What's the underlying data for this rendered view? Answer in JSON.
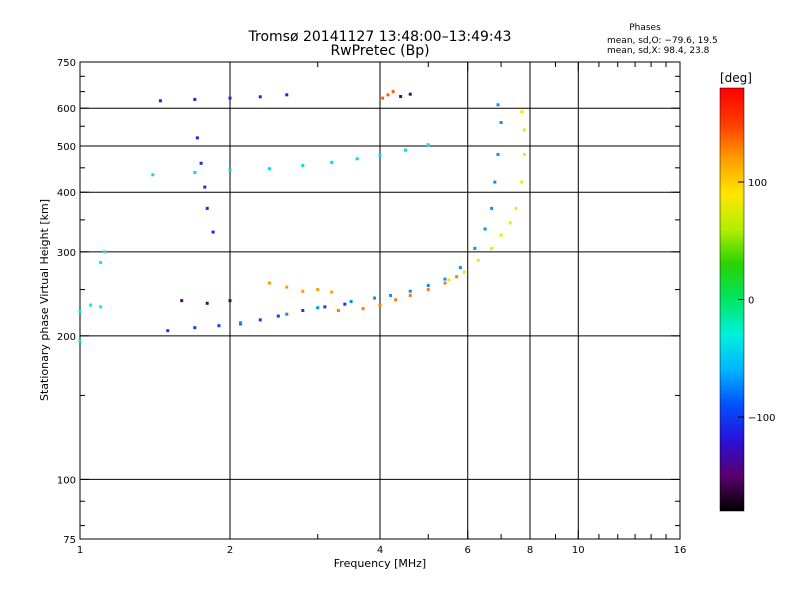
{
  "title": "Tromsø 20141127 13:48:00–13:49:43",
  "subtitle": "RwPretec (Bp)",
  "stats": {
    "heading": "Phases",
    "line_o": "mean, sd,O: −79.6, 19.5",
    "line_x": "mean, sd,X:  98.4, 23.8"
  },
  "chart_data": {
    "type": "scatter",
    "title": "Tromsø 20141127 13:48:00–13:49:43",
    "subtitle": "RwPretec (Bp)",
    "xlabel": "Frequency [MHz]",
    "ylabel": "Stationary phase Virtual Height [km]",
    "x_scale": "log",
    "y_scale": "log",
    "xlim": [
      1,
      16
    ],
    "ylim": [
      75,
      750
    ],
    "x_ticks": [
      1,
      2,
      4,
      6,
      8,
      10,
      16
    ],
    "x_tick_labels": [
      "1",
      "2",
      "4",
      "6",
      "8",
      "10",
      "16"
    ],
    "y_ticks": [
      75,
      100,
      200,
      300,
      400,
      500,
      600,
      750
    ],
    "y_tick_labels": [
      "75",
      "100",
      "200",
      "300",
      "400",
      "500",
      "600",
      "750"
    ],
    "x_gridlines": [
      2,
      4,
      6,
      8,
      10
    ],
    "y_gridlines": [
      100,
      200,
      300,
      400,
      500,
      600
    ],
    "grid": true,
    "colorbar": {
      "label": "[deg]",
      "range": [
        -180,
        180
      ],
      "ticks": [
        100,
        0,
        -100
      ],
      "tick_labels": [
        "100",
        "0",
        "−100"
      ],
      "colors": [
        "#000000",
        "#5a006e",
        "#2a10d8",
        "#0050ff",
        "#00b4ff",
        "#00f0dc",
        "#00e664",
        "#28d200",
        "#b4ee00",
        "#ffe600",
        "#ff9c00",
        "#ff3c00",
        "#ff0000"
      ]
    },
    "series": [
      {
        "phase_deg": -100,
        "points": [
          [
            1.5,
            205
          ],
          [
            1.7,
            208
          ],
          [
            1.9,
            210
          ],
          [
            2.1,
            212
          ],
          [
            2.3,
            216
          ],
          [
            2.5,
            220
          ],
          [
            2.8,
            226
          ],
          [
            3.1,
            230
          ],
          [
            3.4,
            233
          ]
        ]
      },
      {
        "phase_deg": -70,
        "points": [
          [
            2.1,
            213
          ],
          [
            2.6,
            222
          ],
          [
            3.0,
            229
          ],
          [
            3.5,
            236
          ],
          [
            3.9,
            240
          ],
          [
            4.2,
            243
          ],
          [
            4.6,
            248
          ],
          [
            5.0,
            255
          ],
          [
            5.4,
            263
          ],
          [
            5.8,
            278
          ],
          [
            6.2,
            305
          ],
          [
            6.5,
            335
          ],
          [
            6.7,
            370
          ],
          [
            6.8,
            420
          ],
          [
            6.9,
            480
          ],
          [
            7.0,
            560
          ],
          [
            6.9,
            610
          ]
        ]
      },
      {
        "phase_deg": 130,
        "points": [
          [
            3.3,
            226
          ],
          [
            3.7,
            228
          ],
          [
            4.0,
            232
          ],
          [
            4.3,
            238
          ],
          [
            4.6,
            243
          ],
          [
            5.0,
            250
          ],
          [
            5.4,
            258
          ],
          [
            5.7,
            266
          ]
        ]
      },
      {
        "phase_deg": 85,
        "points": [
          [
            5.5,
            262
          ],
          [
            5.9,
            272
          ],
          [
            6.3,
            288
          ],
          [
            6.7,
            305
          ],
          [
            7.0,
            325
          ],
          [
            7.3,
            345
          ],
          [
            7.5,
            370
          ],
          [
            7.7,
            420
          ],
          [
            7.8,
            480
          ],
          [
            7.8,
            540
          ],
          [
            7.7,
            590
          ]
        ]
      },
      {
        "phase_deg": -110,
        "points": [
          [
            1.45,
            622
          ],
          [
            1.7,
            626
          ],
          [
            2.0,
            630
          ],
          [
            2.3,
            634
          ],
          [
            2.6,
            640
          ],
          [
            1.72,
            520
          ],
          [
            1.75,
            460
          ],
          [
            1.78,
            410
          ],
          [
            1.8,
            370
          ],
          [
            1.85,
            330
          ]
        ]
      },
      {
        "phase_deg": -40,
        "points": [
          [
            1.4,
            435
          ],
          [
            1.7,
            440
          ],
          [
            2.0,
            445
          ],
          [
            2.4,
            448
          ],
          [
            2.8,
            455
          ],
          [
            3.2,
            462
          ],
          [
            3.6,
            470
          ],
          [
            4.0,
            478
          ],
          [
            4.5,
            490
          ],
          [
            5.0,
            503
          ]
        ]
      },
      {
        "phase_deg": 120,
        "points": [
          [
            2.4,
            258
          ],
          [
            2.6,
            253
          ],
          [
            2.8,
            248
          ],
          [
            3.0,
            250
          ],
          [
            3.2,
            247
          ]
        ]
      },
      {
        "phase_deg": 140,
        "points": [
          [
            4.05,
            630
          ],
          [
            4.15,
            640
          ],
          [
            4.25,
            650
          ]
        ]
      },
      {
        "phase_deg": -150,
        "points": [
          [
            4.4,
            635
          ],
          [
            4.6,
            642
          ],
          [
            1.6,
            237
          ],
          [
            1.8,
            234
          ],
          [
            2.0,
            237
          ]
        ]
      },
      {
        "phase_deg": -30,
        "points": [
          [
            1.0,
            225
          ],
          [
            1.05,
            232
          ],
          [
            1.1,
            230
          ],
          [
            1.0,
            195
          ],
          [
            1.12,
            300
          ],
          [
            1.1,
            285
          ]
        ]
      }
    ]
  }
}
